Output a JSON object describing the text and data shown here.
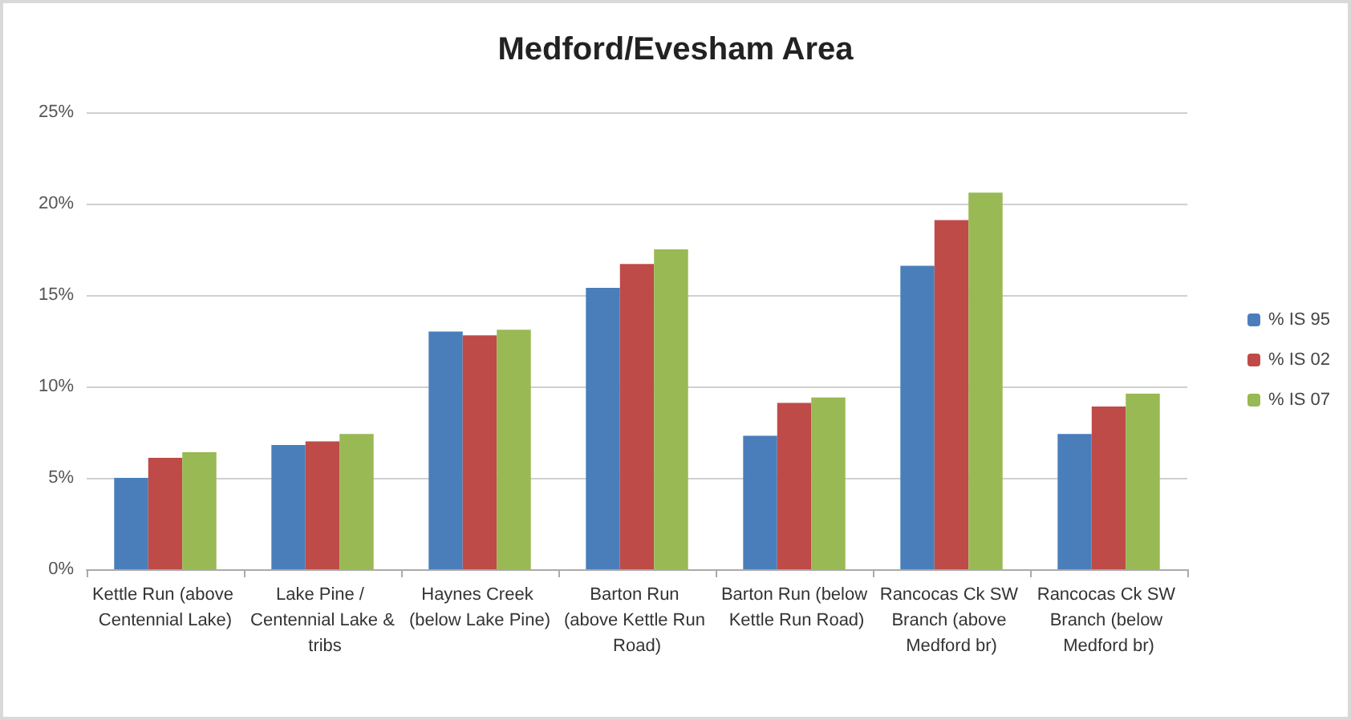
{
  "chart_data": {
    "type": "bar",
    "title": "Medford/Evesham Area",
    "categories": [
      "Kettle Run (above Centennial Lake)",
      "Lake Pine / Centennial Lake & tribs",
      "Haynes Creek (below Lake Pine)",
      "Barton Run (above Kettle Run Road)",
      "Barton Run (below Kettle Run Road)",
      "Rancocas Ck SW Branch (above Medford br)",
      "Rancocas Ck SW Branch (below Medford br)"
    ],
    "series": [
      {
        "name": "% IS 95",
        "color": "#4a7ebb",
        "values": [
          5.0,
          6.8,
          13.0,
          15.4,
          7.3,
          16.6,
          7.4
        ]
      },
      {
        "name": "% IS 02",
        "color": "#be4b48",
        "values": [
          6.1,
          7.0,
          12.8,
          16.7,
          9.1,
          19.1,
          8.9
        ]
      },
      {
        "name": "% IS 07",
        "color": "#98b954",
        "values": [
          6.4,
          7.4,
          13.1,
          17.5,
          9.4,
          20.6,
          9.6
        ]
      }
    ],
    "ylim": [
      0,
      25
    ],
    "yticks": [
      {
        "value": 0,
        "label": "0%"
      },
      {
        "value": 5,
        "label": "5%"
      },
      {
        "value": 10,
        "label": "10%"
      },
      {
        "value": 15,
        "label": "15%"
      },
      {
        "value": 20,
        "label": "20%"
      },
      {
        "value": 25,
        "label": "25%"
      }
    ],
    "grid": "y",
    "legend": "right"
  }
}
